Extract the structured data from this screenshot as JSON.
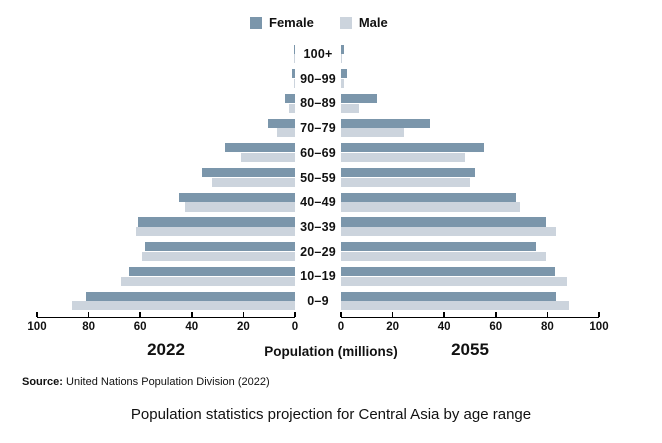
{
  "legend": {
    "items": [
      {
        "label": "Female",
        "color": "#7b96ab"
      },
      {
        "label": "Male",
        "color": "#ccd4dd"
      }
    ]
  },
  "chart_data": {
    "type": "bar",
    "variant": "population-pyramid",
    "xlabel": "Population (millions)",
    "unit": "millions",
    "grid": false,
    "legend_position": "top-center",
    "age_groups": [
      "100+",
      "90–99",
      "80–89",
      "70–79",
      "60–69",
      "50–59",
      "40–49",
      "30–39",
      "20–29",
      "10–19",
      "0–9"
    ],
    "axis_ticks": [
      0,
      20,
      40,
      60,
      80,
      100
    ],
    "xlim": [
      0,
      100
    ],
    "panels": [
      {
        "label": "2022",
        "side": "left",
        "series": [
          {
            "name": "Female",
            "values": [
              0.5,
              1,
              4,
              10.5,
              27,
              36,
              45,
              61,
              58,
              64.5,
              81
            ]
          },
          {
            "name": "Male",
            "values": [
              0.2,
              0.5,
              2.5,
              7,
              21,
              32,
              42.5,
              61.5,
              59.5,
              67.5,
              86.5
            ]
          }
        ]
      },
      {
        "label": "2055",
        "side": "right",
        "series": [
          {
            "name": "Female",
            "values": [
              1,
              2.3,
              14,
              34.5,
              55.5,
              52,
              68,
              79.5,
              75.5,
              83,
              83.5
            ]
          },
          {
            "name": "Male",
            "values": [
              0.5,
              1.2,
              7,
              24.5,
              48,
              50,
              69.5,
              83.5,
              79.5,
              87.5,
              88.5
            ]
          }
        ]
      }
    ]
  },
  "footer": {
    "source_prefix": "Source:",
    "source_text": " United Nations Population Division (2022)"
  },
  "caption": "Population statistics projection for Central Asia by age range"
}
